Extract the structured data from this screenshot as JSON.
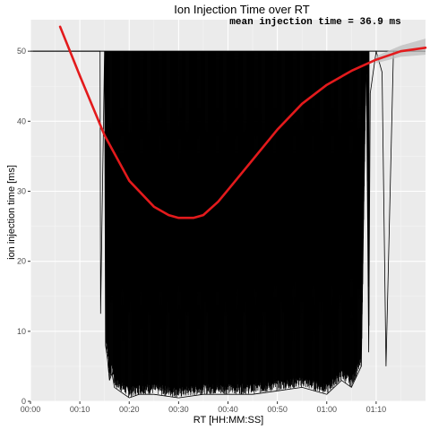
{
  "chart_data": {
    "type": "line",
    "title": "Ion Injection Time over RT",
    "xlabel": "RT [HH:MM:SS]",
    "ylabel": "ion injection time [ms]",
    "annotation": "mean injection time = 36.9 ms",
    "x_unit": "minutes",
    "xlim": [
      0,
      80
    ],
    "ylim": [
      0,
      54.5
    ],
    "x_ticks": [
      {
        "value": 0,
        "label": "00:00"
      },
      {
        "value": 10,
        "label": "00:10"
      },
      {
        "value": 20,
        "label": "00:20"
      },
      {
        "value": 30,
        "label": "00:30"
      },
      {
        "value": 40,
        "label": "00:40"
      },
      {
        "value": 50,
        "label": "00:50"
      },
      {
        "value": 60,
        "label": "01:00"
      },
      {
        "value": 70,
        "label": "01:10"
      }
    ],
    "y_ticks": [
      {
        "value": 0,
        "label": "0"
      },
      {
        "value": 10,
        "label": "10"
      },
      {
        "value": 20,
        "label": "20"
      },
      {
        "value": 30,
        "label": "30"
      },
      {
        "value": 40,
        "label": "40"
      },
      {
        "value": 50,
        "label": "50"
      }
    ],
    "grid": true,
    "series": [
      {
        "color": "#000000",
        "description": "raw injection time per scan",
        "x": [
          0.5,
          14.1,
          14.2,
          15.0,
          15.2,
          15.6,
          16.0,
          16.5,
          17.0,
          18.0,
          19.0,
          20.0,
          22.0,
          25.0,
          30.0,
          35.0,
          40.0,
          45.0,
          50.0,
          55.0,
          60.0,
          63.0,
          65.0,
          67.0,
          68.0,
          68.5,
          68.8,
          70.0,
          71.2,
          72.0,
          73.5,
          75.0,
          80.0
        ],
        "y": [
          50,
          50,
          12.5,
          50,
          8,
          6,
          3,
          4,
          2,
          1.5,
          1,
          0.5,
          1,
          1,
          0.5,
          1,
          1,
          1,
          1.5,
          2,
          1,
          3,
          2,
          5,
          50,
          7,
          44,
          50,
          47,
          5,
          50,
          50,
          50
        ]
      },
      {
        "color": "#e31a1c",
        "description": "smoothed trend",
        "x": [
          6.0,
          10.0,
          15.0,
          20.0,
          25.0,
          28.0,
          30.0,
          33.0,
          35.0,
          38.0,
          40.0,
          45.0,
          50.0,
          55.0,
          60.0,
          65.0,
          70.0,
          75.0,
          80.0
        ],
        "y": [
          53.5,
          46.5,
          38.0,
          31.5,
          27.8,
          26.6,
          26.2,
          26.2,
          26.6,
          28.5,
          30.2,
          34.5,
          38.8,
          42.5,
          45.2,
          47.2,
          48.8,
          50.0,
          50.5
        ]
      }
    ],
    "ribbon": {
      "color": "#bdbdbd",
      "x": [
        70.0,
        75.0,
        80.0
      ],
      "lower": [
        48.3,
        49.2,
        49.5
      ],
      "upper": [
        49.3,
        50.8,
        51.8
      ]
    }
  }
}
